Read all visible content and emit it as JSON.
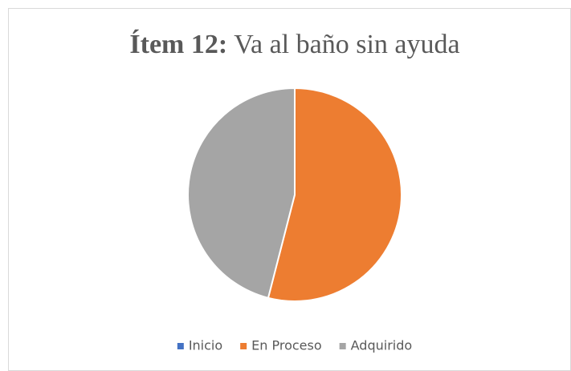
{
  "chart_data": {
    "type": "pie",
    "title": [
      "Ítem 12:",
      "Va al baño sin ayuda"
    ],
    "categories": [
      "Inicio",
      "En Proceso",
      "Adquirido"
    ],
    "values": [
      0,
      54,
      46
    ],
    "colors": [
      "#4472c4",
      "#ed7d31",
      "#a5a5a5"
    ],
    "legend": "bottom"
  }
}
